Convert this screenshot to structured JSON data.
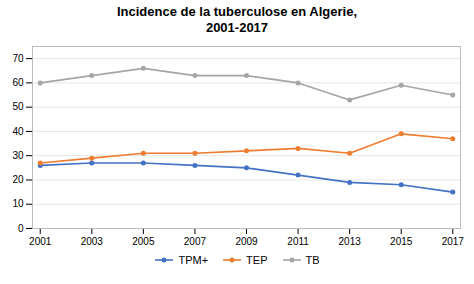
{
  "chart_data": {
    "type": "line",
    "title": "Incidence de la tuberculose en Algerie,\n2001-2017",
    "x": [
      2001,
      2003,
      2005,
      2007,
      2009,
      2011,
      2013,
      2015,
      2017
    ],
    "series": [
      {
        "name": "TPM+",
        "color": "#4472c4",
        "marker": "circle",
        "values": [
          26,
          27,
          27,
          26,
          25,
          22,
          19,
          18,
          15
        ]
      },
      {
        "name": "TEP",
        "color": "#ed7d31",
        "marker": "circle",
        "values": [
          27,
          29,
          31,
          31,
          32,
          33,
          31,
          39,
          37
        ]
      },
      {
        "name": "TB",
        "color": "#a5a5a5",
        "marker": "circle",
        "values": [
          60,
          63,
          66,
          63,
          63,
          60,
          53,
          59,
          55
        ]
      }
    ],
    "xlim": [
      2000.7,
      2017.3
    ],
    "xticks": [
      2001,
      2003,
      2005,
      2007,
      2009,
      2011,
      2013,
      2015,
      2017
    ],
    "ylim": [
      0,
      75
    ],
    "yticks": [
      0,
      10,
      20,
      30,
      40,
      50,
      60,
      70
    ],
    "grid": true,
    "legend": "bottom"
  }
}
